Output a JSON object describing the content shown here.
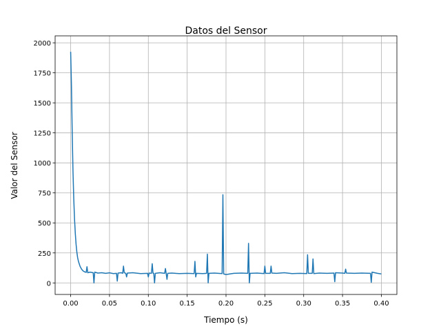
{
  "chart_data": {
    "type": "line",
    "title": "Datos del Sensor",
    "xlabel": "Tiempo (s)",
    "ylabel": "Valor del Sensor",
    "xlim": [
      -0.02,
      0.42
    ],
    "ylim": [
      -96,
      2058
    ],
    "xticks": [
      {
        "value": 0,
        "label": "0.00"
      },
      0.05,
      {
        "value": 0.1,
        "label": "0.10"
      },
      0.15,
      {
        "value": 0.2,
        "label": "0.20"
      },
      0.25,
      {
        "value": 0.3,
        "label": "0.30"
      },
      0.35,
      {
        "value": 0.4,
        "label": "0.40"
      }
    ],
    "yticks": [
      0,
      250,
      500,
      750,
      1000,
      1250,
      1500,
      1750,
      2000
    ],
    "grid": true,
    "x": [
      0,
      0.001,
      0.002,
      0.003,
      0.004,
      0.005,
      0.006,
      0.007,
      0.008,
      0.009,
      0.01,
      0.012,
      0.014,
      0.016,
      0.018,
      0.02,
      0.021,
      0.022,
      0.025,
      0.029,
      0.03,
      0.031,
      0.035,
      0.04,
      0.045,
      0.05,
      0.055,
      0.059,
      0.06,
      0.061,
      0.065,
      0.067,
      0.068,
      0.069,
      0.071,
      0.072,
      0.073,
      0.08,
      0.09,
      0.099,
      0.1,
      0.101,
      0.104,
      0.105,
      0.106,
      0.107,
      0.108,
      0.109,
      0.115,
      0.121,
      0.122,
      0.123,
      0.124,
      0.125,
      0.13,
      0.14,
      0.15,
      0.159,
      0.16,
      0.161,
      0.162,
      0.17,
      0.175,
      0.176,
      0.177,
      0.178,
      0.185,
      0.195,
      0.196,
      0.197,
      0.2,
      0.21,
      0.22,
      0.228,
      0.229,
      0.23,
      0.231,
      0.24,
      0.249,
      0.25,
      0.251,
      0.257,
      0.258,
      0.259,
      0.265,
      0.275,
      0.285,
      0.295,
      0.304,
      0.305,
      0.306,
      0.311,
      0.312,
      0.313,
      0.32,
      0.33,
      0.339,
      0.34,
      0.341,
      0.35,
      0.353,
      0.354,
      0.355,
      0.365,
      0.375,
      0.386,
      0.387,
      0.388,
      0.395,
      0.4
    ],
    "series": [
      {
        "color": "#1f77b4",
        "values": [
          1925,
          1650,
          1250,
          930,
          700,
          530,
          410,
          320,
          255,
          210,
          180,
          140,
          115,
          100,
          92,
          88,
          135,
          85,
          90,
          85,
          0,
          90,
          82,
          85,
          80,
          84,
          78,
          80,
          15,
          82,
          85,
          80,
          140,
          85,
          80,
          50,
          82,
          85,
          78,
          80,
          50,
          82,
          80,
          160,
          82,
          80,
          0,
          80,
          85,
          80,
          120,
          78,
          30,
          80,
          82,
          78,
          80,
          78,
          180,
          50,
          80,
          78,
          80,
          240,
          0,
          80,
          82,
          78,
          735,
          75,
          70,
          80,
          82,
          80,
          330,
          0,
          80,
          82,
          78,
          140,
          80,
          80,
          140,
          82,
          80,
          85,
          78,
          80,
          78,
          235,
          80,
          80,
          200,
          78,
          82,
          80,
          82,
          10,
          85,
          82,
          80,
          115,
          82,
          80,
          82,
          80,
          5,
          90,
          80,
          75
        ]
      }
    ]
  }
}
